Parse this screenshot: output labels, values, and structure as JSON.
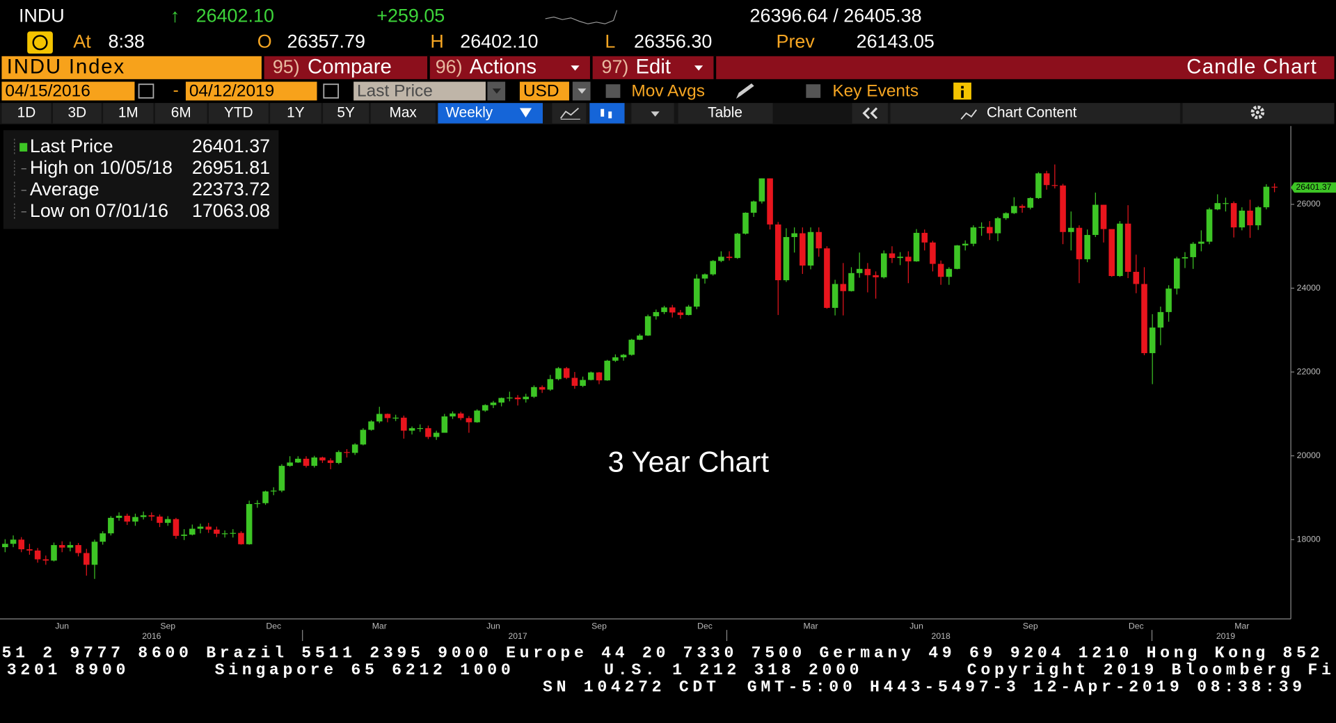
{
  "header": {
    "ticker": "INDU",
    "arrow": "↑",
    "last": "26402.10",
    "change": "+259.05",
    "bid_ask": "26396.64 / 26405.38",
    "time_label": "At",
    "time": "8:38",
    "open_label": "O",
    "open": "26357.79",
    "high_label": "H",
    "high": "26402.10",
    "low_label": "L",
    "low": "26356.30",
    "prev_label": "Prev",
    "prev": "26143.05"
  },
  "toolbar": {
    "security": "INDU Index",
    "compare_num": "95)",
    "compare": "Compare",
    "actions_num": "96)",
    "actions": "Actions",
    "edit_num": "97)",
    "edit": "Edit",
    "view": "Candle Chart",
    "start_date": "04/15/2016",
    "dash": "-",
    "end_date": "04/12/2019",
    "field": "Last Price",
    "currency": "USD",
    "mov_avgs": "Mov Avgs",
    "key_events": "Key Events",
    "ranges": [
      "1D",
      "3D",
      "1M",
      "6M",
      "YTD",
      "1Y",
      "5Y",
      "Max"
    ],
    "frequency": "Weekly",
    "table": "Table",
    "chart_content": "Chart Content"
  },
  "chart_data": {
    "type": "candlestick",
    "annotation": "3 Year Chart",
    "stats": [
      {
        "label": "Last Price",
        "value": 26401.37
      },
      {
        "label": "High on 10/05/18",
        "value": 26951.81
      },
      {
        "label": "Average",
        "value": 22373.72
      },
      {
        "label": "Low on 07/01/16",
        "value": 17063.08
      }
    ],
    "up_color": "#3dc525",
    "down_color": "#e8151d",
    "grid": false,
    "ylim": [
      16150,
      27870
    ],
    "yticks": [
      18000,
      20000,
      22000,
      24000,
      26000
    ],
    "categories": [
      null,
      null,
      null,
      null,
      null,
      null,
      null,
      "Jun",
      null,
      null,
      null,
      null,
      null,
      null,
      null,
      null,
      null,
      null,
      null,
      null,
      "Sep",
      null,
      null,
      null,
      null,
      null,
      null,
      null,
      null,
      null,
      null,
      null,
      null,
      "Dec",
      null,
      null,
      null,
      null,
      null,
      null,
      null,
      null,
      null,
      null,
      null,
      null,
      "Mar",
      null,
      null,
      null,
      null,
      null,
      null,
      null,
      null,
      null,
      null,
      null,
      null,
      null,
      "Jun",
      null,
      null,
      null,
      null,
      null,
      null,
      null,
      null,
      null,
      null,
      null,
      null,
      "Sep",
      null,
      null,
      null,
      null,
      null,
      null,
      null,
      null,
      null,
      null,
      null,
      null,
      "Dec",
      null,
      null,
      null,
      null,
      null,
      null,
      null,
      null,
      null,
      null,
      null,
      null,
      "Mar",
      null,
      null,
      null,
      null,
      null,
      null,
      null,
      null,
      null,
      null,
      null,
      null,
      "Jun",
      null,
      null,
      null,
      null,
      null,
      null,
      null,
      null,
      null,
      null,
      null,
      null,
      null,
      "Sep",
      null,
      null,
      null,
      null,
      null,
      null,
      null,
      null,
      null,
      null,
      null,
      null,
      "Dec",
      null,
      null,
      null,
      null,
      null,
      null,
      null,
      null,
      null,
      null,
      null,
      null,
      "Mar",
      null,
      null,
      null,
      null
    ],
    "category_years": [
      null,
      null,
      null,
      null,
      null,
      null,
      null,
      null,
      null,
      null,
      null,
      null,
      null,
      null,
      null,
      null,
      null,
      null,
      "2016",
      null,
      null,
      null,
      null,
      null,
      null,
      null,
      null,
      null,
      null,
      null,
      null,
      null,
      null,
      null,
      null,
      null,
      null,
      null,
      null,
      null,
      null,
      null,
      null,
      null,
      null,
      null,
      null,
      null,
      null,
      null,
      null,
      null,
      null,
      null,
      null,
      null,
      null,
      null,
      null,
      null,
      null,
      null,
      null,
      "2017",
      null,
      null,
      null,
      null,
      null,
      null,
      null,
      null,
      null,
      null,
      null,
      null,
      null,
      null,
      null,
      null,
      null,
      null,
      null,
      null,
      null,
      null,
      null,
      null,
      null,
      null,
      null,
      null,
      null,
      null,
      null,
      null,
      null,
      null,
      null,
      null,
      null,
      null,
      null,
      null,
      null,
      null,
      null,
      null,
      null,
      null,
      null,
      null,
      null,
      null,
      null,
      "2018",
      null,
      null,
      null,
      null,
      null,
      null,
      null,
      null,
      null,
      null,
      null,
      null,
      null,
      null,
      null,
      null,
      null,
      null,
      null,
      null,
      null,
      null,
      null,
      null,
      null,
      null,
      null,
      null,
      null,
      null,
      null,
      null,
      null,
      null,
      "2019",
      null,
      null,
      null,
      null,
      null,
      null
    ],
    "open": [
      17820,
      17900,
      18000,
      17770,
      17740,
      17530,
      17500,
      17870,
      17810,
      17870,
      17680,
      17400,
      17950,
      18150,
      18520,
      18570,
      18430,
      18540,
      18580,
      18550,
      18400,
      18490,
      18090,
      18120,
      18260,
      18310,
      18240,
      18140,
      18150,
      18160,
      17890,
      18850,
      18870,
      19150,
      19170,
      19760,
      19840,
      19930,
      19760,
      19960,
      19890,
      19830,
      20090,
      20070,
      20270,
      20620,
      20820,
      21000,
      20900,
      20910,
      20600,
      20660,
      20660,
      20450,
      20550,
      20940,
      21010,
      20900,
      20800,
      21080,
      21210,
      21270,
      21380,
      21390,
      21350,
      21410,
      21640,
      21580,
      21830,
      22090,
      21860,
      21670,
      21810,
      21990,
      21800,
      22270,
      22350,
      22410,
      22770,
      22870,
      23330,
      23430,
      23540,
      23420,
      23360,
      23560,
      24230,
      24330,
      24650,
      24750,
      24720,
      25300,
      25800,
      26070,
      26620,
      25520,
      24190,
      25220,
      25310,
      24540,
      25340,
      24950,
      23530,
      24100,
      23930,
      24360,
      24460,
      24310,
      24260,
      24830,
      24720,
      24750,
      24640,
      25320,
      25090,
      24580,
      24270,
      24460,
      25020,
      25060,
      25450,
      25460,
      25310,
      25670,
      25790,
      25960,
      25920,
      26150,
      26740,
      26460,
      26450,
      25340,
      25440,
      24690,
      25270,
      25990,
      25410,
      24290,
      25540,
      24390,
      24100,
      22450,
      23060,
      23430,
      23990,
      24710,
      24740,
      25060,
      25110,
      25880,
      26030,
      26030,
      25450,
      25850,
      25500,
      25930,
      26420
    ],
    "high": [
      18010,
      18100,
      18060,
      17900,
      17800,
      17620,
      17930,
      17960,
      17950,
      17920,
      17780,
      18000,
      18200,
      18560,
      18650,
      18620,
      18620,
      18670,
      18650,
      18600,
      18560,
      18520,
      18250,
      18360,
      18380,
      18400,
      18310,
      18220,
      18250,
      18200,
      18930,
      18940,
      19170,
      19250,
      19800,
      19990,
      19990,
      19990,
      20000,
      19980,
      19940,
      20130,
      20160,
      20300,
      20660,
      20850,
      21170,
      21010,
      20980,
      20960,
      20700,
      20750,
      20720,
      20600,
      21000,
      21060,
      21050,
      20950,
      21110,
      21230,
      21310,
      21390,
      21530,
      21450,
      21480,
      21680,
      21680,
      21930,
      22120,
      22120,
      22000,
      21890,
      22010,
      22000,
      22290,
      22420,
      22430,
      22790,
      22910,
      23370,
      23490,
      23580,
      23600,
      23480,
      23600,
      24330,
      24350,
      24670,
      24880,
      24880,
      25320,
      25810,
      26090,
      26620,
      26620,
      25580,
      25430,
      25450,
      25450,
      25450,
      25450,
      25000,
      24200,
      24600,
      24500,
      24850,
      24600,
      24400,
      24900,
      25000,
      24860,
      24880,
      25410,
      25400,
      25130,
      24660,
      24500,
      25030,
      25140,
      25500,
      25570,
      25600,
      25700,
      25810,
      26170,
      26000,
      26170,
      26770,
      26800,
      26951.81,
      26490,
      25830,
      25500,
      25400,
      26280,
      25990,
      25410,
      25600,
      25980,
      24800,
      24500,
      23380,
      23560,
      24070,
      24750,
      24860,
      25100,
      25380,
      25920,
      26240,
      26160,
      26070,
      25930,
      26110,
      25960,
      26480,
      26500
    ],
    "low": [
      17700,
      17820,
      17700,
      17640,
      17450,
      17400,
      17480,
      17700,
      17720,
      17600,
      17140,
      17063.08,
      17880,
      18100,
      18450,
      18350,
      18330,
      18480,
      18450,
      18300,
      18330,
      18020,
      17990,
      18100,
      18150,
      18160,
      18060,
      18050,
      18050,
      17880,
      17880,
      18760,
      18830,
      19060,
      19130,
      19740,
      19830,
      19720,
      19720,
      19830,
      19680,
      19800,
      19960,
      20020,
      20250,
      20600,
      20780,
      20800,
      20830,
      20410,
      20510,
      20570,
      20400,
      20380,
      20550,
      20880,
      20850,
      20550,
      20790,
      21050,
      21140,
      21180,
      21300,
      21200,
      21270,
      21380,
      21500,
      21550,
      21800,
      21830,
      21600,
      21640,
      21800,
      21710,
      21790,
      22240,
      22270,
      22390,
      22760,
      22860,
      23250,
      23380,
      23300,
      23270,
      23350,
      23500,
      24110,
      24300,
      24620,
      24660,
      24700,
      25280,
      25700,
      26020,
      25400,
      23360,
      24150,
      24850,
      24340,
      24450,
      24750,
      23510,
      23350,
      23350,
      23920,
      24250,
      23900,
      23750,
      24230,
      24600,
      24550,
      24120,
      24630,
      24900,
      24400,
      24080,
      24080,
      24450,
      24900,
      25000,
      25250,
      25150,
      25120,
      25630,
      25770,
      25800,
      25880,
      26130,
      26350,
      26380,
      25050,
      24900,
      24120,
      24620,
      25220,
      25090,
      24270,
      24270,
      24240,
      23880,
      22400,
      21710,
      22640,
      23200,
      23850,
      24480,
      24460,
      24880,
      25050,
      25860,
      25830,
      25210,
      25380,
      25200,
      25390,
      25880,
      26290
    ],
    "close": [
      17900,
      18000,
      17770,
      17740,
      17530,
      17500,
      17870,
      17810,
      17870,
      17680,
      17400,
      17950,
      18150,
      18520,
      18570,
      18430,
      18540,
      18580,
      18550,
      18400,
      18490,
      18090,
      18120,
      18260,
      18310,
      18240,
      18140,
      18150,
      18160,
      17890,
      18850,
      18870,
      19150,
      19170,
      19760,
      19840,
      19930,
      19760,
      19960,
      19890,
      19830,
      20090,
      20070,
      20270,
      20620,
      20820,
      21000,
      20900,
      20910,
      20600,
      20660,
      20660,
      20450,
      20550,
      20940,
      21010,
      20900,
      20800,
      21080,
      21210,
      21270,
      21380,
      21390,
      21350,
      21410,
      21640,
      21580,
      21830,
      22090,
      21860,
      21670,
      21810,
      21990,
      21800,
      22270,
      22350,
      22410,
      22770,
      22870,
      23330,
      23430,
      23540,
      23420,
      23360,
      23560,
      24230,
      24330,
      24650,
      24750,
      24720,
      25300,
      25800,
      26070,
      26620,
      25520,
      24190,
      25220,
      25310,
      24540,
      25340,
      24950,
      23530,
      24100,
      23930,
      24360,
      24460,
      24310,
      24260,
      24830,
      24720,
      24750,
      24640,
      25320,
      25090,
      24580,
      24270,
      24460,
      25020,
      25060,
      25450,
      25460,
      25310,
      25670,
      25790,
      25960,
      25920,
      26150,
      26740,
      26460,
      26450,
      25340,
      25440,
      24690,
      25270,
      25990,
      25410,
      24290,
      25540,
      24390,
      24100,
      22450,
      23060,
      23430,
      23990,
      24710,
      24740,
      25060,
      25110,
      25880,
      26030,
      26030,
      25450,
      25850,
      25500,
      25930,
      26420,
      26401.37
    ]
  },
  "footer": {
    "line1": "51 2 9777 8600 Brazil 5511 2395 9000 Europe 44 20 7330 7500 Germany 49 69 9204 1210 Hong Kong 852",
    "line2": [
      "3201 8900",
      "Singapore 65 6212 1000",
      "U.S. 1 212 318 2000",
      "Copyright 2019 Bloomberg Fi"
    ],
    "line3": "SN 104272 CDT  GMT-5:00 H443-5497-3 12-Apr-2019 08:38:39"
  }
}
